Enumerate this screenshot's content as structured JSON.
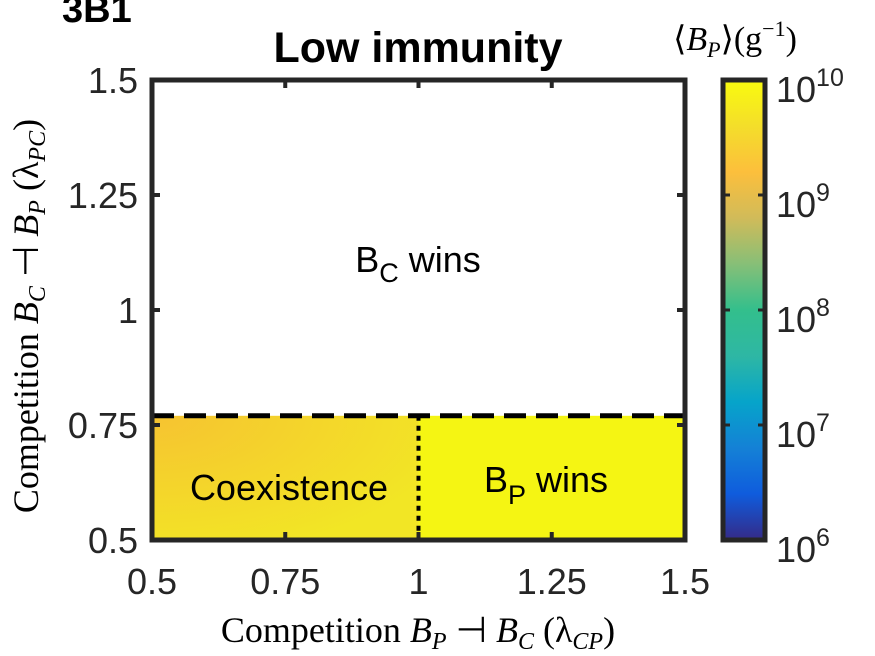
{
  "panel_label": "3B1",
  "chart_data": {
    "type": "heatmap",
    "title": "Low immunity",
    "xlabel": "Competition B_P ⊣ B_C (λ_CP)",
    "ylabel": "Competition B_C ⊣ B_P (λ_PC)",
    "xlim": [
      0.5,
      1.5
    ],
    "ylim": [
      0.5,
      1.5
    ],
    "x_ticks": [
      0.5,
      0.75,
      1,
      1.25,
      1.5
    ],
    "y_ticks": [
      0.5,
      0.75,
      1,
      1.25,
      1.5
    ],
    "x_tick_labels": [
      "0.5",
      "0.75",
      "1",
      "1.25",
      "1.5"
    ],
    "y_tick_labels": [
      "0.5",
      "0.75",
      "1",
      "1.25",
      "1.5"
    ],
    "grid": false,
    "colorbar": {
      "label": "⟨B_P⟩(g⁻¹)",
      "scale": "log",
      "range": [
        1000000.0,
        10000000000.0
      ],
      "tick_exponents": [
        6,
        7,
        8,
        9,
        10
      ],
      "colormap": "parula"
    },
    "thresholds": {
      "lambda_PC": 0.77,
      "lambda_CP": 1.0
    },
    "regions": [
      {
        "label": "B_C wins",
        "lambda_CP": [
          0.5,
          1.5
        ],
        "lambda_PC": [
          0.77,
          1.5
        ],
        "B_P": null
      },
      {
        "label": "Coexistence",
        "lambda_CP": [
          0.5,
          1.0
        ],
        "lambda_PC": [
          0.5,
          0.77
        ],
        "B_P_log10": [
          9.4,
          9.85
        ]
      },
      {
        "label": "B_P wins",
        "lambda_CP": [
          1.0,
          1.5
        ],
        "lambda_PC": [
          0.5,
          0.77
        ],
        "B_P_log10": [
          10,
          10
        ]
      }
    ],
    "region_labels": {
      "bc": {
        "main": "B",
        "sub": "C",
        "rest": " wins"
      },
      "bp": {
        "main": "B",
        "sub": "P",
        "rest": " wins"
      },
      "coex": "Coexistence"
    }
  },
  "axis_text": {
    "x_prefix": "Competition ",
    "x_b1": "B",
    "x_b1_sub": "P",
    "x_tack": " ⊣ ",
    "x_b2": "B",
    "x_b2_sub": "C",
    "x_lambda": " (λ",
    "x_lambda_sub": "CP",
    "x_close": ")",
    "y_prefix": "Competition ",
    "y_b1": "B",
    "y_b1_sub": "C",
    "y_tack": " ⊣ ",
    "y_b2": "B",
    "y_b2_sub": "P",
    "y_lambda": " (λ",
    "y_lambda_sub": "PC",
    "y_close": ")",
    "cb_open": "⟨",
    "cb_b": "B",
    "cb_b_sub": "P",
    "cb_mid": "⟩(g",
    "cb_exp": "−1",
    "cb_close": ")",
    "cb_tick_base": "10"
  },
  "colors": {
    "frame": "#262626",
    "background": "#ffffff",
    "bp_wins": "#f5f513",
    "coexistence_dark": "#f6c331",
    "coexistence_light": "#f2e625"
  }
}
